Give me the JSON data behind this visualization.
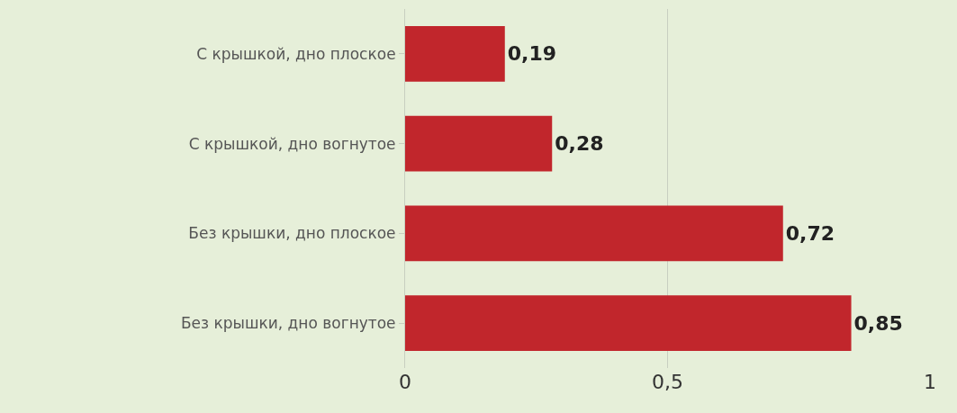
{
  "chart_data": {
    "type": "bar",
    "orientation": "horizontal",
    "categories": [
      "С крышкой, дно плоское",
      "С крышкой, дно вогнутое",
      "Без крышки, дно плоское",
      "Без крышки, дно вогнутое"
    ],
    "values": [
      0.19,
      0.28,
      0.72,
      0.85
    ],
    "value_labels": [
      "0,19",
      "0,28",
      "0,72",
      "0,85"
    ],
    "color": "#c1262c",
    "xlim": [
      0,
      1
    ],
    "xticks": [
      0,
      {
        "value": 0.5,
        "label": "0,5"
      },
      1
    ],
    "grid": "x"
  }
}
